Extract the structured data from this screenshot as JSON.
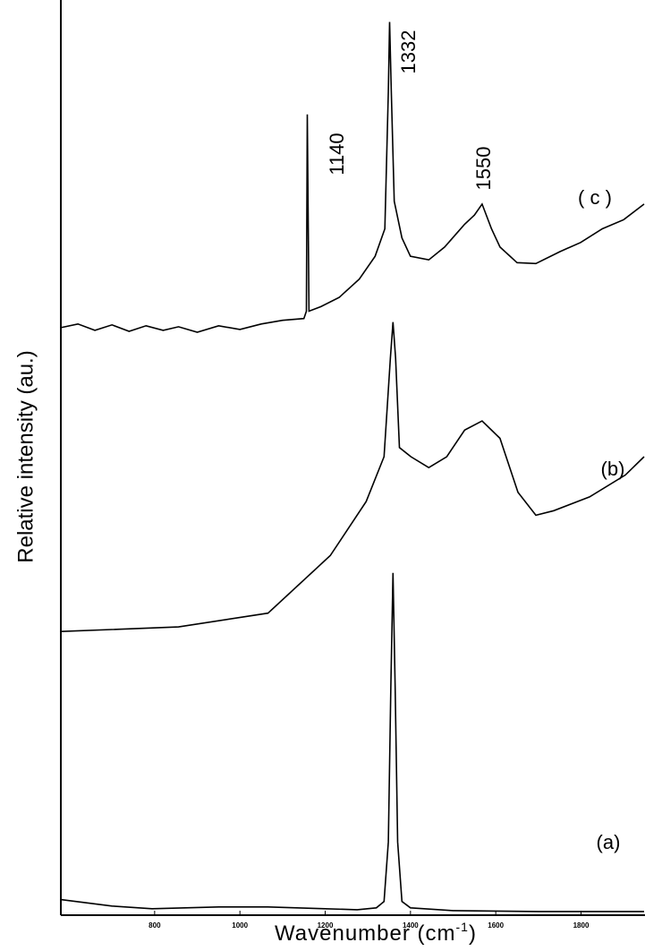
{
  "chart_data": {
    "type": "line",
    "y_label": "Relative intensity (au.)",
    "x_label": [
      "Wavenumber (cm",
      "-1",
      ")"
    ],
    "xlim": [
      580,
      1950
    ],
    "ylim": [
      0,
      100
    ],
    "xticks": [
      800,
      1000,
      1200,
      1400,
      1600,
      1800
    ],
    "annotations": [
      "1140",
      "1332",
      "1550",
      "( c )",
      "(b)",
      "(a)"
    ],
    "series": [
      {
        "color": "#000000",
        "x": [
          580,
          700,
          794,
          950,
          1066,
          1200,
          1275,
          1320,
          1338,
          1348,
          1354,
          1359,
          1364,
          1370,
          1380,
          1400,
          1500,
          1700,
          1948
        ],
        "values": [
          1.7,
          1.0,
          0.7,
          0.9,
          0.9,
          0.7,
          0.6,
          0.8,
          1.5,
          8,
          25,
          37.4,
          25,
          8,
          1.5,
          0.8,
          0.5,
          0.4,
          0.4
        ]
      },
      {
        "color": "#000000",
        "x": [
          580,
          856,
          1066,
          1212,
          1296,
          1338,
          1353,
          1359,
          1365,
          1374,
          1401,
          1443,
          1485,
          1527,
          1568,
          1610,
          1652,
          1694,
          1736,
          1820,
          1904,
          1948
        ],
        "values": [
          31.0,
          31.5,
          33.0,
          39.3,
          45.2,
          50.1,
          60.9,
          64.8,
          60.9,
          51.1,
          50.1,
          48.9,
          50.1,
          53.0,
          54.0,
          52.1,
          46.2,
          43.7,
          44.2,
          45.7,
          48.1,
          50.1
        ]
      },
      {
        "color": "#000000",
        "x": [
          580,
          620,
          660,
          700,
          740,
          780,
          820,
          856,
          900,
          950,
          1000,
          1050,
          1100,
          1150,
          1156,
          1158,
          1162,
          1190,
          1233,
          1280,
          1317,
          1340,
          1348,
          1351,
          1355,
          1362,
          1380,
          1400,
          1443,
          1480,
          1527,
          1550,
          1568,
          1590,
          1610,
          1650,
          1694,
          1750,
          1799,
          1850,
          1900,
          1948
        ],
        "values": [
          64.2,
          64.6,
          63.9,
          64.5,
          63.8,
          64.4,
          63.9,
          64.3,
          63.7,
          64.4,
          64.0,
          64.6,
          65.0,
          65.2,
          66,
          87.5,
          66,
          66.5,
          67.5,
          69.5,
          72,
          75,
          90,
          97.6,
          90,
          78,
          74,
          72,
          71.6,
          73,
          75.5,
          76.5,
          77.7,
          75,
          73,
          71.3,
          71.2,
          72.5,
          73.5,
          75,
          76,
          77.7
        ]
      }
    ]
  }
}
